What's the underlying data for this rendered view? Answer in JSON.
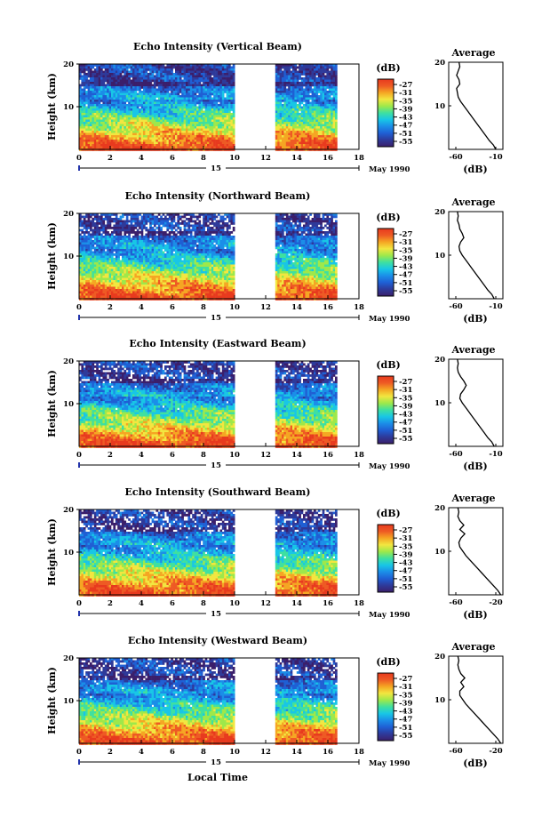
{
  "x_axis_label": "Local Time",
  "palette": [
    "#3b1f6b",
    "#2e3a9a",
    "#1f5fd4",
    "#1b8ee8",
    "#18c6e6",
    "#3fe0a0",
    "#9ee84a",
    "#f2e640",
    "#f5a623",
    "#ee5a24",
    "#e83a1e"
  ],
  "chart_data": [
    {
      "type": "heatmap",
      "title": "Echo Intensity (Vertical Beam)",
      "ylabel": "Height (km)",
      "yticks": [
        "20",
        "10"
      ],
      "xticks": [
        "0",
        "2",
        "4",
        "6",
        "8",
        "10",
        "12",
        "14",
        "16",
        "18"
      ],
      "date_marker": "15",
      "date_label": "May 1990",
      "colorbar_unit": "(dB)",
      "colorbar_ticks": [
        "-27",
        "-31",
        "-35",
        "-39",
        "-43",
        "-47",
        "-51",
        "-55"
      ],
      "data_gap_hours": [
        10,
        12.5
      ],
      "data_end_hour": 16.5,
      "profile": {
        "title": "Average",
        "yticks": [
          "20",
          "10"
        ],
        "xticks": [
          "-60",
          "-10"
        ],
        "xlabel": "(dB)",
        "height_km": [
          0,
          1,
          2,
          3,
          4,
          5,
          6,
          7,
          8,
          9,
          10,
          11,
          12,
          13,
          14,
          15,
          16,
          17,
          18,
          19,
          20
        ],
        "db": [
          -10,
          -13,
          -18,
          -22,
          -26,
          -30,
          -34,
          -38,
          -42,
          -46,
          -50,
          -54,
          -57,
          -58,
          -59,
          -55,
          -56,
          -59,
          -57,
          -55,
          -56
        ]
      }
    },
    {
      "type": "heatmap",
      "title": "Echo Intensity (Northward Beam)",
      "ylabel": "Height (km)",
      "yticks": [
        "20",
        "10"
      ],
      "xticks": [
        "0",
        "2",
        "4",
        "6",
        "8",
        "10",
        "12",
        "14",
        "16",
        "18"
      ],
      "date_marker": "15",
      "date_label": "May 1990",
      "colorbar_unit": "(dB)",
      "colorbar_ticks": [
        "-27",
        "-31",
        "-35",
        "-39",
        "-43",
        "-47",
        "-51",
        "-55"
      ],
      "data_gap_hours": [
        10,
        12.5
      ],
      "data_end_hour": 16.5,
      "profile": {
        "title": "Average",
        "yticks": [
          "20",
          "10"
        ],
        "xticks": [
          "-60",
          "-10"
        ],
        "xlabel": "(dB)",
        "height_km": [
          0,
          1,
          2,
          3,
          4,
          5,
          6,
          7,
          8,
          9,
          10,
          11,
          12,
          13,
          14,
          15,
          16,
          17,
          18,
          19,
          20
        ],
        "db": [
          -12,
          -15,
          -20,
          -24,
          -28,
          -32,
          -36,
          -40,
          -44,
          -48,
          -52,
          -55,
          -56,
          -54,
          -50,
          -52,
          -55,
          -56,
          -58,
          -57,
          -58
        ]
      }
    },
    {
      "type": "heatmap",
      "title": "Echo Intensity (Eastward Beam)",
      "ylabel": "Height (km)",
      "yticks": [
        "20",
        "10"
      ],
      "xticks": [
        "0",
        "2",
        "4",
        "6",
        "8",
        "10",
        "12",
        "14",
        "16",
        "18"
      ],
      "date_marker": "15",
      "date_label": "May 1990",
      "colorbar_unit": "(dB)",
      "colorbar_ticks": [
        "-27",
        "-31",
        "-35",
        "-39",
        "-43",
        "-47",
        "-51",
        "-55"
      ],
      "data_gap_hours": [
        10,
        12.5
      ],
      "data_end_hour": 16.5,
      "profile": {
        "title": "Average",
        "yticks": [
          "20",
          "10"
        ],
        "xticks": [
          "-60",
          "-10"
        ],
        "xlabel": "(dB)",
        "height_km": [
          0,
          1,
          2,
          3,
          4,
          5,
          6,
          7,
          8,
          9,
          10,
          11,
          12,
          13,
          14,
          15,
          16,
          17,
          18,
          19,
          20
        ],
        "db": [
          -12,
          -15,
          -20,
          -24,
          -28,
          -32,
          -36,
          -40,
          -44,
          -48,
          -52,
          -55,
          -54,
          -50,
          -47,
          -50,
          -54,
          -57,
          -58,
          -57,
          -58
        ]
      }
    },
    {
      "type": "heatmap",
      "title": "Echo Intensity (Southward Beam)",
      "ylabel": "Height (km)",
      "yticks": [
        "20",
        "10"
      ],
      "xticks": [
        "0",
        "2",
        "4",
        "6",
        "8",
        "10",
        "12",
        "14",
        "16",
        "18"
      ],
      "date_marker": "15",
      "date_label": "May 1990",
      "colorbar_unit": "(dB)",
      "colorbar_ticks": [
        "-27",
        "-31",
        "-35",
        "-39",
        "-43",
        "-47",
        "-51",
        "-55"
      ],
      "data_gap_hours": [
        10,
        12.5
      ],
      "data_end_hour": 16.5,
      "profile": {
        "title": "Average",
        "yticks": [
          "20",
          "10"
        ],
        "xticks": [
          "-60",
          "-20"
        ],
        "xlabel": "(dB)",
        "height_km": [
          0,
          1,
          2,
          3,
          4,
          5,
          6,
          7,
          8,
          9,
          10,
          11,
          12,
          13,
          14,
          15,
          16,
          17,
          18,
          19,
          20
        ],
        "db": [
          -15,
          -18,
          -22,
          -26,
          -30,
          -34,
          -38,
          -42,
          -46,
          -50,
          -53,
          -56,
          -57,
          -55,
          -51,
          -56,
          -52,
          -56,
          -58,
          -57,
          -58
        ]
      }
    },
    {
      "type": "heatmap",
      "title": "Echo Intensity (Westward Beam)",
      "ylabel": "Height (km)",
      "yticks": [
        "20",
        "10"
      ],
      "xticks": [
        "0",
        "2",
        "4",
        "6",
        "8",
        "10",
        "12",
        "14",
        "16",
        "18"
      ],
      "date_marker": "15",
      "date_label": "May 1990",
      "colorbar_unit": "(dB)",
      "colorbar_ticks": [
        "-27",
        "-31",
        "-35",
        "-39",
        "-43",
        "-47",
        "-51",
        "-55"
      ],
      "data_gap_hours": [
        10,
        12.5
      ],
      "data_end_hour": 16.5,
      "profile": {
        "title": "Average",
        "yticks": [
          "20",
          "10"
        ],
        "xticks": [
          "-60",
          "-20"
        ],
        "xlabel": "(dB)",
        "height_km": [
          0,
          1,
          2,
          3,
          4,
          5,
          6,
          7,
          8,
          9,
          10,
          11,
          12,
          13,
          14,
          15,
          16,
          17,
          18,
          19,
          20
        ],
        "db": [
          -15,
          -18,
          -22,
          -26,
          -30,
          -34,
          -38,
          -42,
          -46,
          -50,
          -53,
          -56,
          -56,
          -52,
          -55,
          -51,
          -55,
          -57,
          -58,
          -57,
          -58
        ]
      }
    }
  ]
}
